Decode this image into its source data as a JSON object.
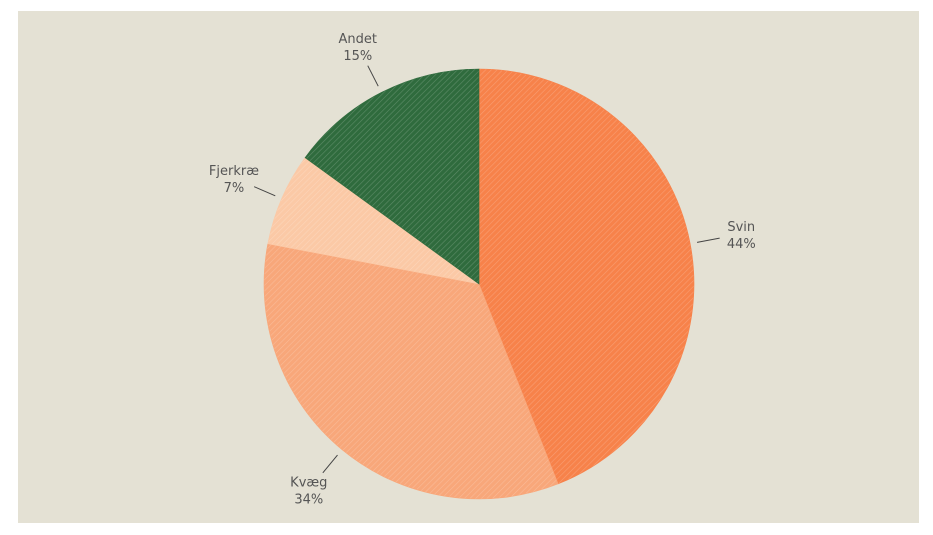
{
  "chart_data": {
    "type": "pie",
    "slices": [
      {
        "label": "Svin",
        "value": 44,
        "value_label": "44%",
        "color": "#f7824a"
      },
      {
        "label": "Kvæg",
        "value": 34,
        "value_label": "34%",
        "color": "#f8a77a"
      },
      {
        "label": "Fjerkræ",
        "value": 7,
        "value_label": "7%",
        "color": "#fbc9a6"
      },
      {
        "label": "Andet",
        "value": 15,
        "value_label": "15%",
        "color": "#2f6b3d"
      }
    ],
    "start_angle_deg": 0,
    "direction": "clockwise",
    "pattern": "diagonal-hatch",
    "background": "#e4e1d4"
  }
}
